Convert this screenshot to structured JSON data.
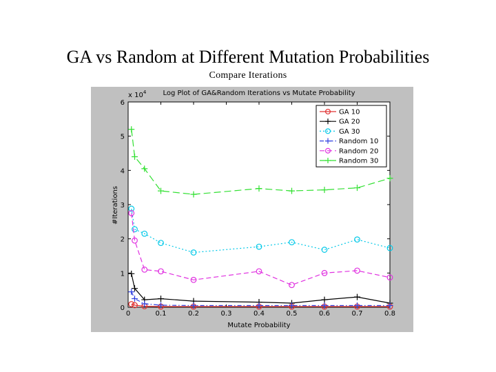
{
  "slide": {
    "title": "GA vs Random at Different Mutation Probabilities",
    "subtitle": "Compare Iterations"
  },
  "chart_data": {
    "type": "line",
    "title": "Log Plot of GA&Random Iterations vs Mutate Probability",
    "xlabel": "Mutate Probability",
    "ylabel": "#Iterations",
    "y_multiplier_label": "x 10",
    "y_multiplier_exponent": "4",
    "xlim": [
      0,
      0.8
    ],
    "ylim": [
      0,
      6
    ],
    "x_ticks": [
      "0",
      "0.1",
      "0.2",
      "0.3",
      "0.4",
      "0.5",
      "0.6",
      "0.7",
      "0.8"
    ],
    "y_ticks": [
      "0",
      "1",
      "2",
      "3",
      "4",
      "5",
      "6"
    ],
    "legend_position": "top-right",
    "series": [
      {
        "name": "GA 10",
        "color": "#e03030",
        "marker": "circle",
        "dash": "solid",
        "x": [
          0.01,
          0.02,
          0.05,
          0.1,
          0.2,
          0.4,
          0.5,
          0.6,
          0.7,
          0.8
        ],
        "y": [
          0.09,
          0.06,
          0.03,
          0.02,
          0.02,
          0.02,
          0.02,
          0.02,
          0.02,
          0.02
        ]
      },
      {
        "name": "GA 20",
        "color": "#000000",
        "marker": "plus",
        "dash": "solid",
        "x": [
          0.01,
          0.02,
          0.05,
          0.1,
          0.2,
          0.4,
          0.5,
          0.6,
          0.7,
          0.8
        ],
        "y": [
          0.98,
          0.55,
          0.22,
          0.25,
          0.18,
          0.15,
          0.12,
          0.22,
          0.3,
          0.12
        ]
      },
      {
        "name": "GA 30",
        "color": "#00c8e8",
        "marker": "circle",
        "dash": "dotted",
        "x": [
          0.01,
          0.02,
          0.05,
          0.1,
          0.2,
          0.4,
          0.5,
          0.6,
          0.7,
          0.8
        ],
        "y": [
          2.88,
          2.28,
          2.15,
          1.88,
          1.6,
          1.77,
          1.9,
          1.68,
          1.98,
          1.73
        ]
      },
      {
        "name": "Random 10",
        "color": "#3040e0",
        "marker": "plus",
        "dash": "dashdot",
        "x": [
          0.01,
          0.02,
          0.05,
          0.1,
          0.2,
          0.4,
          0.5,
          0.6,
          0.7,
          0.8
        ],
        "y": [
          0.45,
          0.25,
          0.1,
          0.06,
          0.05,
          0.05,
          0.05,
          0.05,
          0.05,
          0.05
        ]
      },
      {
        "name": "Random 20",
        "color": "#e030e0",
        "marker": "circle",
        "dash": "dashed",
        "x": [
          0.01,
          0.02,
          0.05,
          0.1,
          0.2,
          0.4,
          0.5,
          0.6,
          0.7,
          0.8
        ],
        "y": [
          2.75,
          1.95,
          1.1,
          1.05,
          0.8,
          1.05,
          0.65,
          1.0,
          1.07,
          0.87
        ]
      },
      {
        "name": "Random 30",
        "color": "#30e030",
        "marker": "plus",
        "dash": "longdash",
        "x": [
          0.01,
          0.02,
          0.05,
          0.1,
          0.2,
          0.4,
          0.5,
          0.6,
          0.7,
          0.8
        ],
        "y": [
          5.2,
          4.4,
          4.05,
          3.4,
          3.3,
          3.47,
          3.4,
          3.43,
          3.49,
          3.77
        ]
      }
    ]
  }
}
